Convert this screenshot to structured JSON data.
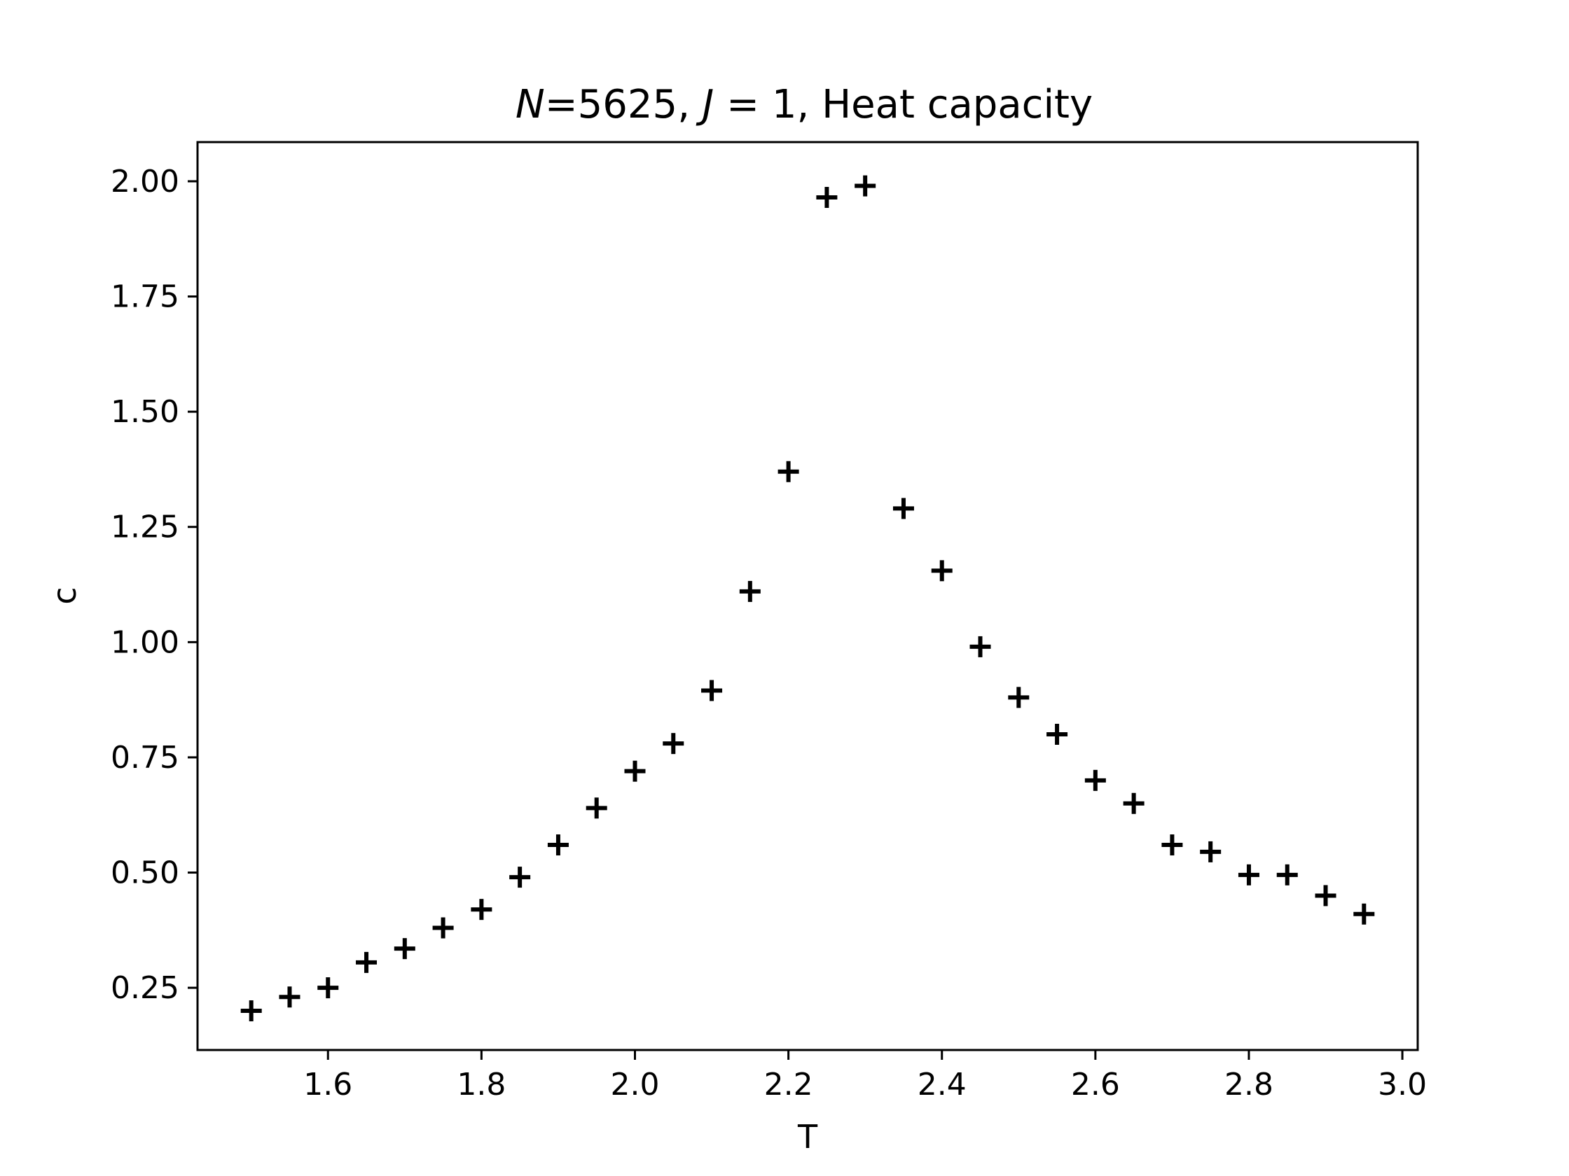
{
  "chart_data": {
    "type": "scatter",
    "title_parts": {
      "n_symbol": "N",
      "n_value": "=5625, ",
      "j_symbol": "J",
      "j_value": " = 1, Heat capacity"
    },
    "xlabel": "T",
    "ylabel": "c",
    "xlim": [
      1.43,
      3.02
    ],
    "ylim": [
      0.115,
      2.085
    ],
    "xticks": [
      1.6,
      1.8,
      2.0,
      2.2,
      2.4,
      2.6,
      2.8,
      3.0
    ],
    "xtick_labels": [
      "1.6",
      "1.8",
      "2.0",
      "2.2",
      "2.4",
      "2.6",
      "2.8",
      "3.0"
    ],
    "yticks": [
      0.25,
      0.5,
      0.75,
      1.0,
      1.25,
      1.5,
      1.75,
      2.0
    ],
    "ytick_labels": [
      "0.25",
      "0.50",
      "0.75",
      "1.00",
      "1.25",
      "1.50",
      "1.75",
      "2.00"
    ],
    "marker": "plus",
    "color": "#000000",
    "series": [
      {
        "name": "heat capacity",
        "x": [
          1.5,
          1.55,
          1.6,
          1.65,
          1.7,
          1.75,
          1.8,
          1.85,
          1.9,
          1.95,
          2.0,
          2.05,
          2.1,
          2.15,
          2.2,
          2.25,
          2.3,
          2.35,
          2.4,
          2.45,
          2.5,
          2.55,
          2.6,
          2.65,
          2.7,
          2.75,
          2.8,
          2.85,
          2.9,
          2.95
        ],
        "y": [
          0.2,
          0.23,
          0.25,
          0.305,
          0.335,
          0.38,
          0.42,
          0.49,
          0.56,
          0.64,
          0.72,
          0.78,
          0.895,
          1.11,
          1.37,
          1.965,
          1.99,
          1.29,
          1.155,
          0.99,
          0.88,
          0.8,
          0.7,
          0.65,
          0.56,
          0.545,
          0.495,
          0.495,
          0.45,
          0.41
        ]
      }
    ]
  }
}
